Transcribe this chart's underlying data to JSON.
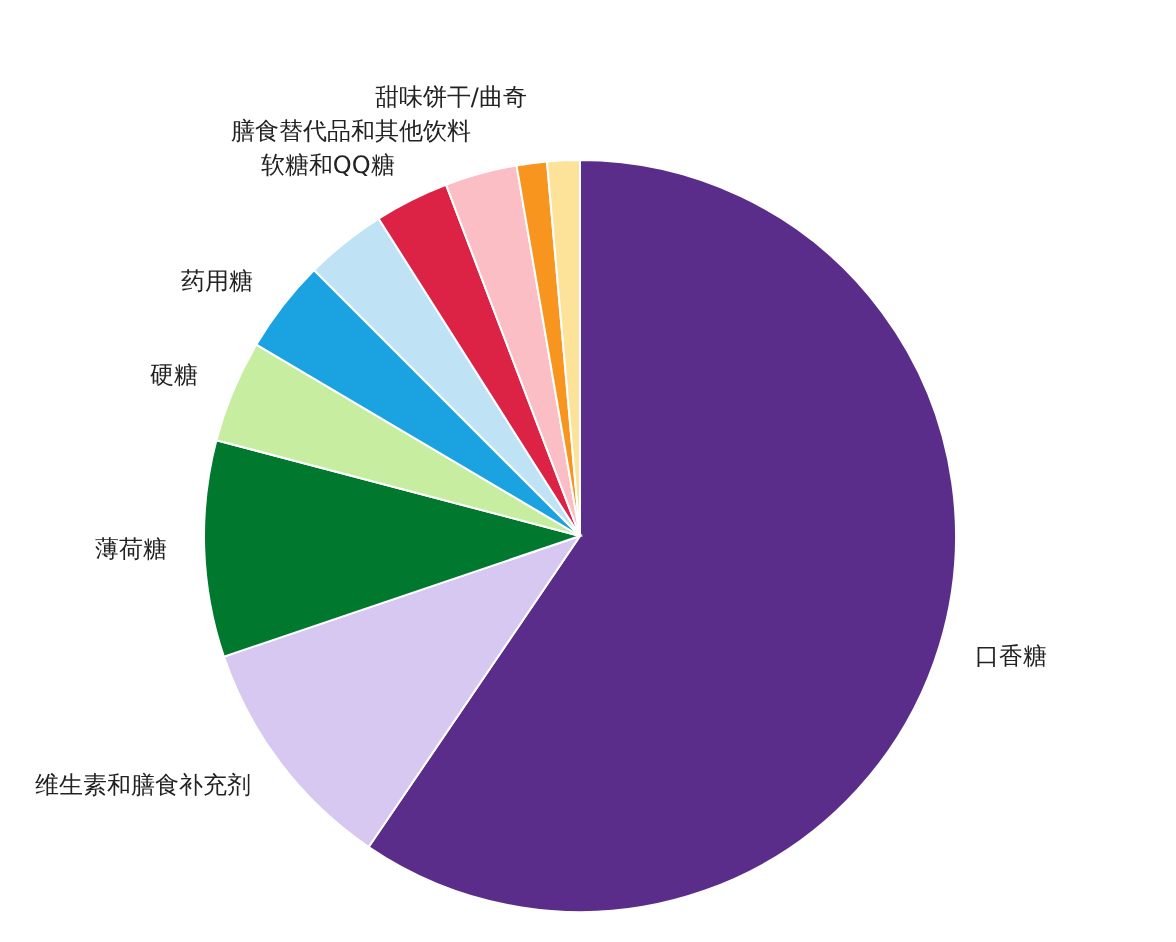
{
  "chart_data": {
    "type": "pie",
    "categories": [
      "口香糖",
      "维生素和膳食补充剂",
      "薄荷糖",
      "硬糖",
      "药用糖",
      null,
      "软糖和QQ糖",
      "膳食替代品和其他饮料",
      "甜味饼干/曲奇",
      null
    ],
    "values": [
      59.5,
      10.3,
      9.3,
      4.4,
      4.0,
      3.5,
      3.2,
      3.1,
      1.3,
      1.4
    ],
    "colors": [
      "#5b2d8a",
      "#d7c8f2",
      "#00782d",
      "#c6eda0",
      "#1aa3e0",
      "#bfe3f5",
      "#dc2346",
      "#fbbec4",
      "#f7951e",
      "#fde29a"
    ]
  }
}
